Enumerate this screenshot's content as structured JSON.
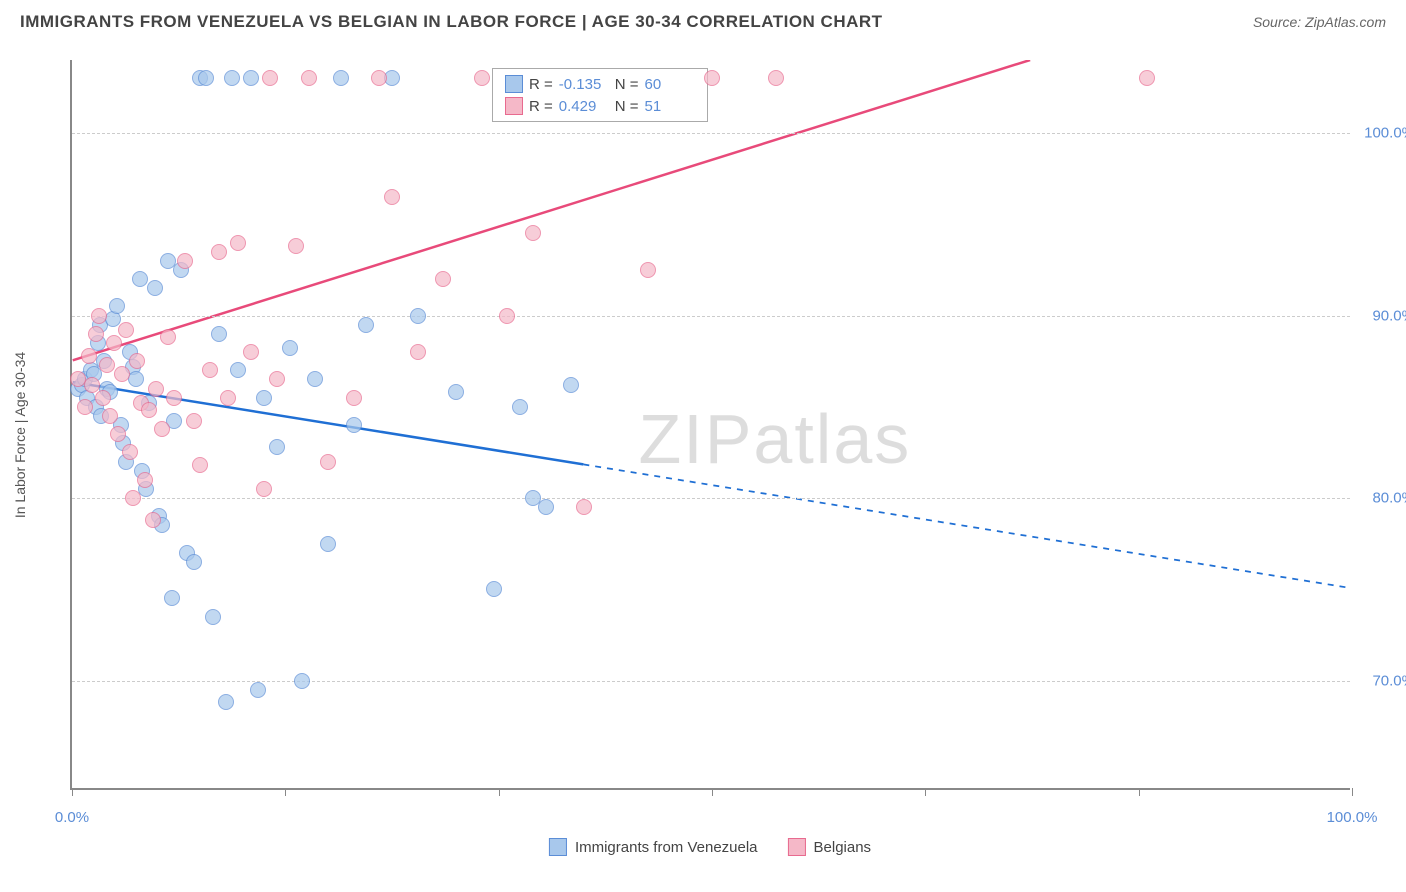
{
  "header": {
    "title": "IMMIGRANTS FROM VENEZUELA VS BELGIAN IN LABOR FORCE | AGE 30-34 CORRELATION CHART",
    "source_label": "Source: ZipAtlas.com"
  },
  "watermark": "ZIPatlas",
  "chart": {
    "type": "scatter",
    "ylabel": "In Labor Force | Age 30-34",
    "background_color": "#ffffff",
    "grid_color": "#cccccc",
    "axis_color": "#888888",
    "tick_label_color": "#5b8dd6",
    "x_domain": [
      0,
      100
    ],
    "y_domain": [
      64,
      104
    ],
    "x_ticks": [
      0,
      16.67,
      33.33,
      50,
      66.67,
      83.33,
      100
    ],
    "x_tick_labels": {
      "0": "0.0%",
      "100": "100.0%"
    },
    "y_ticks": [
      70,
      80,
      90,
      100
    ],
    "y_tick_labels": {
      "70": "70.0%",
      "80": "80.0%",
      "90": "90.0%",
      "100": "100.0%"
    },
    "point_radius": 8,
    "series": [
      {
        "id": "venezuela",
        "label": "Immigrants from Venezuela",
        "fill": "#a8c8ec",
        "stroke": "#5b8dd6",
        "line_color": "#1f6fd4",
        "line_width": 2.5,
        "R": "-0.135",
        "N": "60",
        "regression": {
          "x1": 0,
          "y1": 86.3,
          "x2": 100,
          "y2": 75.0,
          "solid_until_x": 40
        },
        "points": [
          [
            0.5,
            86
          ],
          [
            0.8,
            86.2
          ],
          [
            1,
            86.5
          ],
          [
            1.2,
            85.5
          ],
          [
            1.5,
            87
          ],
          [
            1.7,
            86.8
          ],
          [
            1.9,
            85
          ],
          [
            2,
            88.5
          ],
          [
            2.2,
            89.5
          ],
          [
            2.3,
            84.5
          ],
          [
            2.5,
            87.5
          ],
          [
            2.7,
            86
          ],
          [
            3,
            85.8
          ],
          [
            3.2,
            89.8
          ],
          [
            3.5,
            90.5
          ],
          [
            3.8,
            84
          ],
          [
            4,
            83
          ],
          [
            4.2,
            82
          ],
          [
            4.5,
            88
          ],
          [
            4.8,
            87.2
          ],
          [
            5,
            86.5
          ],
          [
            5.3,
            92
          ],
          [
            5.5,
            81.5
          ],
          [
            5.8,
            80.5
          ],
          [
            6,
            85.2
          ],
          [
            6.5,
            91.5
          ],
          [
            6.8,
            79
          ],
          [
            7,
            78.5
          ],
          [
            7.5,
            93
          ],
          [
            7.8,
            74.5
          ],
          [
            8,
            84.2
          ],
          [
            8.5,
            92.5
          ],
          [
            9,
            77
          ],
          [
            9.5,
            76.5
          ],
          [
            10,
            103
          ],
          [
            10.5,
            103
          ],
          [
            11,
            73.5
          ],
          [
            11.5,
            89
          ],
          [
            12,
            68.8
          ],
          [
            12.5,
            103
          ],
          [
            13,
            87
          ],
          [
            14,
            103
          ],
          [
            14.5,
            69.5
          ],
          [
            15,
            85.5
          ],
          [
            16,
            82.8
          ],
          [
            17,
            88.2
          ],
          [
            18,
            70
          ],
          [
            19,
            86.5
          ],
          [
            20,
            77.5
          ],
          [
            21,
            103
          ],
          [
            22,
            84
          ],
          [
            23,
            89.5
          ],
          [
            25,
            103
          ],
          [
            27,
            90
          ],
          [
            30,
            85.8
          ],
          [
            33,
            75
          ],
          [
            35,
            85
          ],
          [
            36,
            80
          ],
          [
            37,
            79.5
          ],
          [
            39,
            86.2
          ]
        ]
      },
      {
        "id": "belgians",
        "label": "Belgians",
        "fill": "#f5b8c8",
        "stroke": "#e86a8f",
        "line_color": "#e84a7a",
        "line_width": 2.5,
        "R": "0.429",
        "N": "51",
        "regression": {
          "x1": 0,
          "y1": 87.5,
          "x2": 75,
          "y2": 104,
          "solid_until_x": 75
        },
        "points": [
          [
            0.5,
            86.5
          ],
          [
            1,
            85
          ],
          [
            1.3,
            87.8
          ],
          [
            1.6,
            86.2
          ],
          [
            1.9,
            89
          ],
          [
            2.1,
            90
          ],
          [
            2.4,
            85.5
          ],
          [
            2.7,
            87.3
          ],
          [
            3,
            84.5
          ],
          [
            3.3,
            88.5
          ],
          [
            3.6,
            83.5
          ],
          [
            3.9,
            86.8
          ],
          [
            4.2,
            89.2
          ],
          [
            4.5,
            82.5
          ],
          [
            4.8,
            80
          ],
          [
            5.1,
            87.5
          ],
          [
            5.4,
            85.2
          ],
          [
            5.7,
            81
          ],
          [
            6,
            84.8
          ],
          [
            6.3,
            78.8
          ],
          [
            6.6,
            86
          ],
          [
            7,
            83.8
          ],
          [
            7.5,
            88.8
          ],
          [
            8,
            85.5
          ],
          [
            8.8,
            93
          ],
          [
            9.5,
            84.2
          ],
          [
            10,
            81.8
          ],
          [
            10.8,
            87
          ],
          [
            11.5,
            93.5
          ],
          [
            12.2,
            85.5
          ],
          [
            13,
            94
          ],
          [
            14,
            88
          ],
          [
            15,
            80.5
          ],
          [
            15.5,
            103
          ],
          [
            16,
            86.5
          ],
          [
            17.5,
            93.8
          ],
          [
            18.5,
            103
          ],
          [
            20,
            82
          ],
          [
            22,
            85.5
          ],
          [
            24,
            103
          ],
          [
            25,
            96.5
          ],
          [
            27,
            88
          ],
          [
            29,
            92
          ],
          [
            32,
            103
          ],
          [
            34,
            90
          ],
          [
            36,
            94.5
          ],
          [
            40,
            79.5
          ],
          [
            45,
            92.5
          ],
          [
            50,
            103
          ],
          [
            55,
            103
          ],
          [
            84,
            103
          ]
        ]
      }
    ]
  },
  "stats_box": {
    "r_label": "R =",
    "n_label": "N ="
  },
  "legend": {
    "items": [
      "venezuela",
      "belgians"
    ]
  }
}
